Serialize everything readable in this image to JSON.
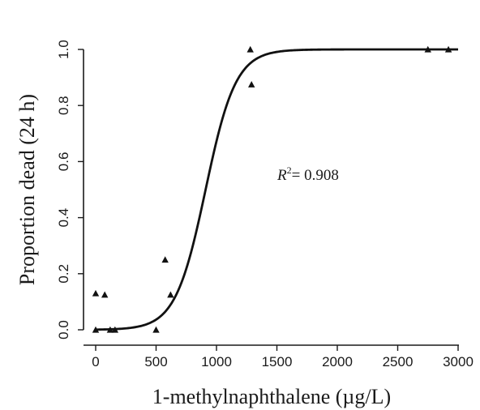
{
  "chart_data": {
    "type": "scatter",
    "xlabel": "1-methylnaphthalene (µg/L)",
    "ylabel": "Proportion dead (24 h)",
    "xlim": [
      0,
      3000
    ],
    "ylim": [
      0,
      1.0
    ],
    "x_ticks": [
      0,
      500,
      1000,
      1500,
      2000,
      2500,
      3000
    ],
    "y_ticks": [
      0.0,
      0.2,
      0.4,
      0.6,
      0.8,
      1.0
    ],
    "x_tick_labels": [
      "0",
      "500",
      "1000",
      "1500",
      "2000",
      "2500",
      "3000"
    ],
    "y_tick_labels": [
      "0.0",
      "0.2",
      "0.4",
      "0.6",
      "0.8",
      "1.0"
    ],
    "grid": false,
    "marker": "triangle",
    "points": [
      {
        "x": 0,
        "y": 0.13
      },
      {
        "x": 0,
        "y": 0.0
      },
      {
        "x": 75,
        "y": 0.125
      },
      {
        "x": 120,
        "y": 0.0
      },
      {
        "x": 160,
        "y": 0.0
      },
      {
        "x": 500,
        "y": 0.0
      },
      {
        "x": 575,
        "y": 0.25
      },
      {
        "x": 620,
        "y": 0.125
      },
      {
        "x": 1280,
        "y": 1.0
      },
      {
        "x": 1290,
        "y": 0.875
      },
      {
        "x": 2750,
        "y": 1.0
      },
      {
        "x": 2920,
        "y": 1.0
      }
    ],
    "fit": {
      "model": "logistic",
      "midpoint": 910,
      "scale": 125
    },
    "annotation": {
      "r_symbol": "R",
      "r_exponent": "2",
      "r_value": "= 0.908"
    }
  }
}
